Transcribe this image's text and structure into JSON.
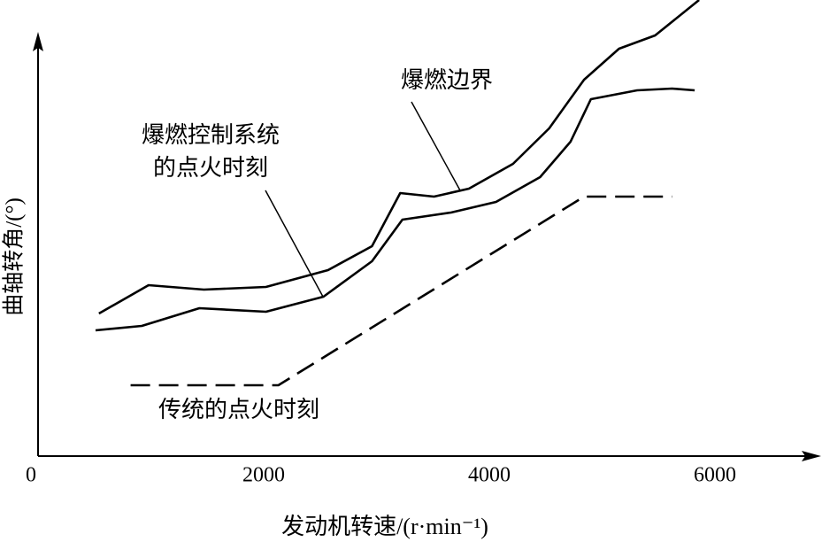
{
  "chart_data": {
    "type": "line",
    "xlabel": "发动机转速/(r·min⁻¹)",
    "ylabel": "曲轴转角/(°)",
    "xlim": [
      0,
      6900
    ],
    "ylim": [
      0,
      105
    ],
    "xticks": [
      0,
      2000,
      4000,
      6000
    ],
    "series": [
      {
        "name": "爆燃边界",
        "color": "#000000",
        "line_style": "solid",
        "x": [
          540,
          980,
          1470,
          2020,
          2570,
          2960,
          3210,
          3510,
          3820,
          4210,
          4530,
          4840,
          5150,
          5470,
          5860
        ],
        "values": [
          32.2,
          38.6,
          37.6,
          38.2,
          42,
          47.4,
          59.4,
          58.6,
          60.4,
          66,
          74,
          85,
          92,
          95,
          103
        ]
      },
      {
        "name": [
          "爆燃控制系统",
          "的点火时刻"
        ],
        "color": "#000000",
        "line_style": "solid",
        "x": [
          510,
          920,
          1430,
          2020,
          2530,
          2960,
          3230,
          3660,
          4060,
          4450,
          4720,
          4900,
          5310,
          5620,
          5820
        ],
        "values": [
          28.4,
          29.4,
          33.4,
          32.6,
          36,
          44,
          53.4,
          55,
          57.4,
          63,
          71,
          80.6,
          82.6,
          83,
          82.6
        ]
      },
      {
        "name": "传统的点火时刻",
        "color": "#000000",
        "line_style": "dashed",
        "x": [
          820,
          2130,
          4840,
          5620
        ],
        "values": [
          16,
          16,
          58.6,
          58.6
        ]
      }
    ]
  }
}
